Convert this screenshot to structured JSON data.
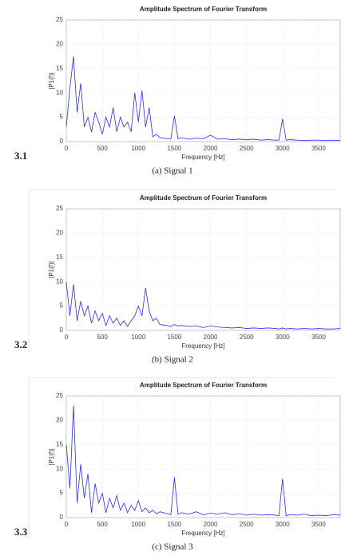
{
  "chart_data": [
    {
      "type": "line",
      "title": "Amplitude Spectrum of Fourier Transform",
      "xlabel": "Frequency [Hz]",
      "ylabel": "|P1(f)|",
      "panel_label": "3.1",
      "caption": "(a) Signal 1",
      "color": "#2b2bff",
      "grid": true,
      "xlim": [
        0,
        3800
      ],
      "ylim": [
        0,
        25
      ],
      "xticks": [
        0,
        500,
        1000,
        1500,
        2000,
        2500,
        3000,
        3500
      ],
      "yticks": [
        0,
        5,
        10,
        15,
        20,
        25
      ],
      "x": [
        0,
        50,
        100,
        150,
        200,
        250,
        300,
        350,
        400,
        450,
        500,
        550,
        600,
        650,
        700,
        750,
        800,
        850,
        900,
        950,
        1000,
        1050,
        1100,
        1150,
        1200,
        1250,
        1300,
        1400,
        1450,
        1500,
        1550,
        1600,
        1700,
        1800,
        1900,
        2000,
        2100,
        2200,
        2300,
        2400,
        2500,
        2600,
        2700,
        2800,
        2900,
        2950,
        3000,
        3050,
        3100,
        3200,
        3300,
        3400,
        3500,
        3600,
        3700,
        3800
      ],
      "values": [
        3,
        11,
        17.5,
        6,
        12,
        3,
        5,
        2,
        6,
        4,
        1.5,
        5,
        3,
        7,
        2,
        5,
        3,
        4,
        2,
        10,
        4,
        10.5,
        3,
        7,
        1,
        1.5,
        0.8,
        0.6,
        0.5,
        5.3,
        0.6,
        0.8,
        0.5,
        0.7,
        0.6,
        1.3,
        0.5,
        0.6,
        0.4,
        0.5,
        0.4,
        0.5,
        0.3,
        0.4,
        0.3,
        0.3,
        4.7,
        0.3,
        0.4,
        0.3,
        0.2,
        0.3,
        0.3,
        0.2,
        0.3,
        0.2
      ]
    },
    {
      "type": "line",
      "title": "Amplitude Spectrum of Fourier Transform",
      "xlabel": "Frequency [Hz]",
      "ylabel": "|P1(f)|",
      "panel_label": "3.2",
      "caption": "(b) Signal 2",
      "color": "#2b2bff",
      "grid": true,
      "xlim": [
        0,
        3800
      ],
      "ylim": [
        0,
        25
      ],
      "xticks": [
        0,
        500,
        1000,
        1500,
        2000,
        2500,
        3000,
        3500
      ],
      "yticks": [
        0,
        5,
        10,
        15,
        20,
        25
      ],
      "x": [
        0,
        50,
        100,
        150,
        200,
        250,
        300,
        350,
        400,
        450,
        500,
        550,
        600,
        650,
        700,
        750,
        800,
        850,
        900,
        950,
        1000,
        1050,
        1100,
        1150,
        1200,
        1250,
        1300,
        1400,
        1450,
        1500,
        1550,
        1600,
        1700,
        1800,
        1900,
        2000,
        2100,
        2200,
        2300,
        2400,
        2500,
        2600,
        2700,
        2800,
        2900,
        2950,
        3000,
        3050,
        3100,
        3200,
        3300,
        3400,
        3500,
        3600,
        3700,
        3800
      ],
      "values": [
        10,
        3,
        9.5,
        2,
        6,
        3,
        5,
        1.5,
        4,
        2,
        3.5,
        1,
        3,
        1.5,
        2.5,
        1,
        2,
        0.8,
        2,
        3,
        5,
        3,
        8.7,
        4,
        2,
        2.5,
        1.2,
        1,
        0.8,
        1.2,
        0.9,
        1,
        0.8,
        0.9,
        0.6,
        0.9,
        0.7,
        0.6,
        0.5,
        0.6,
        0.4,
        0.5,
        0.4,
        0.5,
        0.4,
        0.3,
        0.5,
        0.3,
        0.4,
        0.3,
        0.4,
        0.3,
        0.4,
        0.3,
        0.3,
        0.4
      ]
    },
    {
      "type": "line",
      "title": "Amplitude Spectrum of Fourier Transform",
      "xlabel": "Frequency [Hz]",
      "ylabel": "|P1(f)|",
      "panel_label": "3.3",
      "caption": "(c) Signal 3",
      "color": "#2b2bff",
      "grid": true,
      "xlim": [
        0,
        3800
      ],
      "ylim": [
        0,
        25
      ],
      "xticks": [
        0,
        500,
        1000,
        1500,
        2000,
        2500,
        3000,
        3500
      ],
      "yticks": [
        0,
        5,
        10,
        15,
        20,
        25
      ],
      "x": [
        0,
        50,
        100,
        150,
        200,
        250,
        300,
        350,
        400,
        450,
        500,
        550,
        600,
        650,
        700,
        750,
        800,
        850,
        900,
        950,
        1000,
        1050,
        1100,
        1150,
        1200,
        1250,
        1300,
        1400,
        1450,
        1500,
        1550,
        1600,
        1700,
        1800,
        1900,
        2000,
        2100,
        2200,
        2300,
        2400,
        2500,
        2600,
        2700,
        2800,
        2900,
        2950,
        3000,
        3050,
        3100,
        3200,
        3300,
        3400,
        3500,
        3600,
        3700,
        3800
      ],
      "values": [
        15,
        6,
        23,
        3,
        11,
        4,
        9,
        1,
        7,
        3,
        5,
        1,
        4,
        2,
        4.5,
        1.5,
        3,
        1,
        2.5,
        1.5,
        3.5,
        1.2,
        2,
        1,
        1.5,
        0.8,
        1.2,
        0.8,
        0.6,
        8.3,
        0.7,
        1,
        0.7,
        1.2,
        0.6,
        0.9,
        0.7,
        1,
        0.6,
        0.8,
        0.5,
        0.7,
        0.5,
        0.6,
        0.5,
        0.4,
        8,
        0.4,
        0.6,
        0.5,
        0.7,
        0.4,
        0.5,
        0.4,
        0.6,
        0.5
      ]
    }
  ]
}
